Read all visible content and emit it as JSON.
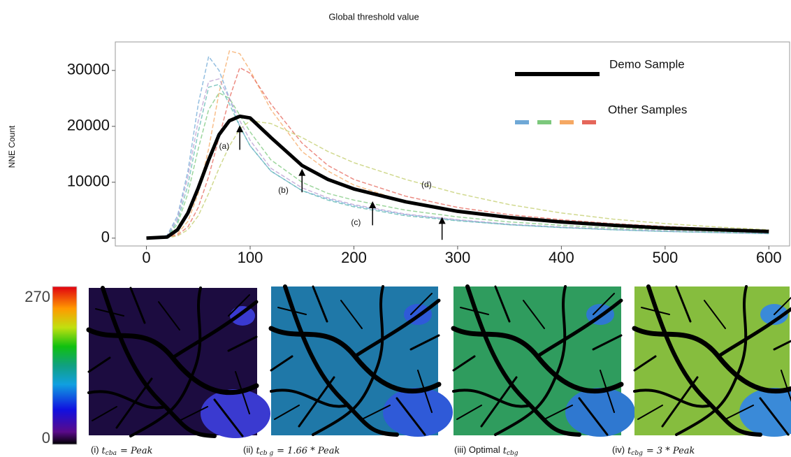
{
  "chart_data": {
    "type": "line",
    "title": "Global threshold value",
    "y_label": "NNE Count",
    "x": [
      0,
      20,
      30,
      40,
      50,
      60,
      70,
      80,
      90,
      100,
      120,
      150,
      175,
      200,
      250,
      300,
      350,
      400,
      450,
      500,
      550,
      600
    ],
    "series": [
      {
        "name": "Demo Sample",
        "color": "#000000",
        "values": [
          0,
          200,
          1500,
          4500,
          9000,
          14000,
          18500,
          21000,
          21800,
          21500,
          18000,
          13000,
          10500,
          8800,
          6500,
          4800,
          3700,
          2900,
          2300,
          1800,
          1500,
          1200
        ]
      },
      {
        "color": "#6fa8d6",
        "values": [
          0,
          500,
          4000,
          12000,
          24000,
          32500,
          30000,
          25000,
          20000,
          16500,
          12000,
          8500,
          7000,
          5800,
          4200,
          3200,
          2400,
          1900,
          1500,
          1200,
          1000,
          800
        ]
      },
      {
        "color": "#f5a863",
        "values": [
          0,
          100,
          800,
          3000,
          8000,
          16000,
          26000,
          33500,
          33000,
          30000,
          23000,
          15500,
          12000,
          9500,
          6500,
          4800,
          3600,
          2800,
          2200,
          1700,
          1400,
          1100
        ]
      },
      {
        "color": "#7cc87c",
        "values": [
          0,
          300,
          2500,
          8000,
          16000,
          23000,
          26000,
          25000,
          22000,
          19000,
          14000,
          10000,
          8000,
          6800,
          5000,
          3800,
          2900,
          2300,
          1800,
          1500,
          1200,
          1000
        ]
      },
      {
        "color": "#e5665a",
        "values": [
          0,
          100,
          600,
          2000,
          5500,
          11000,
          18000,
          25000,
          30500,
          29500,
          24000,
          17000,
          13000,
          10500,
          7500,
          5500,
          4200,
          3300,
          2600,
          2100,
          1700,
          1400
        ]
      },
      {
        "color": "#c2cc6a",
        "values": [
          0,
          50,
          400,
          1500,
          4000,
          8000,
          12500,
          16500,
          19500,
          21000,
          20500,
          18000,
          15500,
          13500,
          10500,
          8000,
          6000,
          4500,
          3400,
          2600,
          2000,
          1500
        ]
      },
      {
        "color": "#b89bd0",
        "values": [
          0,
          400,
          3500,
          11000,
          21000,
          28000,
          28500,
          25000,
          21000,
          17500,
          12500,
          9000,
          7200,
          6000,
          4300,
          3300,
          2500,
          2000,
          1600,
          1300,
          1000,
          800
        ]
      },
      {
        "color": "#5fb8b0",
        "values": [
          0,
          300,
          3000,
          9500,
          19000,
          27000,
          27500,
          24000,
          20000,
          16500,
          12000,
          8500,
          6800,
          5600,
          4000,
          3100,
          2400,
          1900,
          1500,
          1200,
          1000,
          800
        ]
      }
    ],
    "other_samples_label": "Other Samples",
    "other_samples_colors": [
      "#6fa8d6",
      "#7cc87c",
      "#f5a863",
      "#e5665a"
    ],
    "annotations": [
      {
        "text": "(a)",
        "x": 75,
        "y": 16400,
        "arrow_x": 90,
        "arrow_from": 15800,
        "arrow_to": 20200
      },
      {
        "text": "(b)",
        "x": 132,
        "y": 8500,
        "arrow_x": 150,
        "arrow_from": 8200,
        "arrow_to": 12400
      },
      {
        "text": "(c)",
        "x": 202,
        "y": 2750,
        "arrow_x": 218,
        "arrow_from": 2300,
        "arrow_to": 6600
      },
      {
        "text": "(d)",
        "x": 270,
        "y": 9500,
        "arrow_x": 285,
        "arrow_from": -300,
        "arrow_to": 3800
      }
    ],
    "xlim": [
      -30,
      620
    ],
    "ylim": [
      -1400,
      35100
    ],
    "xticks": [
      0,
      100,
      200,
      300,
      400,
      500,
      600
    ],
    "yticks": [
      0,
      10000,
      20000,
      30000
    ]
  },
  "colorbar": {
    "ticks": [
      0,
      270
    ]
  },
  "captions": [
    {
      "label": "(i)",
      "var": "t",
      "sub": "cba",
      "expr": "= Peak"
    },
    {
      "label": "(ii)",
      "var": "t",
      "sub": "cb g",
      "expr": "= 1.66 * Peak"
    },
    {
      "label": "(iii)  Optimal",
      "var": "t",
      "sub": "cbg"
    },
    {
      "label": "(iv)",
      "var": "t",
      "sub": "cbg",
      "expr": "= 3 * Peak"
    }
  ]
}
